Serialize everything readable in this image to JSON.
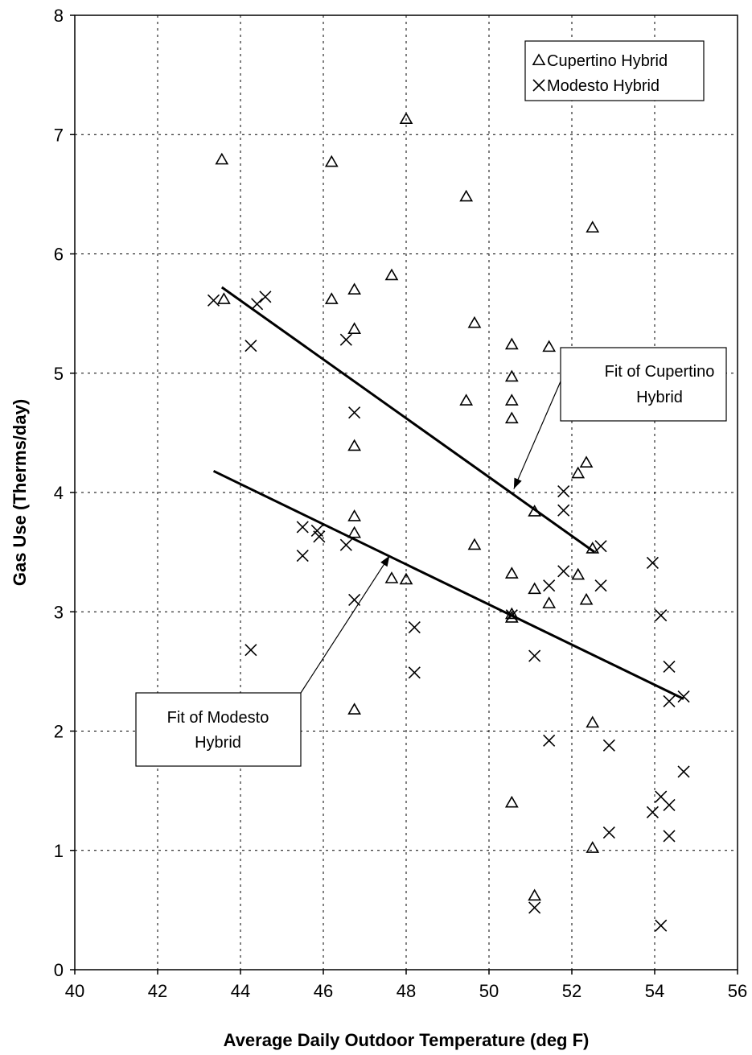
{
  "chart_data": {
    "type": "scatter",
    "title": "",
    "xlabel": "Average Daily Outdoor Temperature (deg F)",
    "ylabel": "Gas Use (Therms/day)",
    "xlim": [
      40,
      56
    ],
    "ylim": [
      0,
      8
    ],
    "xticks": [
      40,
      42,
      44,
      46,
      48,
      50,
      52,
      54,
      56
    ],
    "yticks": [
      0,
      1,
      2,
      3,
      4,
      5,
      6,
      7,
      8
    ],
    "grid": true,
    "legend_position": "top-right",
    "series": [
      {
        "name": "Cupertino Hybrid",
        "marker": "triangle",
        "points": [
          [
            43.55,
            6.79
          ],
          [
            43.6,
            5.62
          ],
          [
            46.2,
            6.77
          ],
          [
            46.2,
            5.62
          ],
          [
            46.75,
            5.7
          ],
          [
            46.75,
            5.37
          ],
          [
            46.75,
            4.39
          ],
          [
            46.75,
            3.8
          ],
          [
            46.75,
            3.66
          ],
          [
            46.75,
            2.18
          ],
          [
            47.65,
            5.82
          ],
          [
            47.65,
            3.28
          ],
          [
            48.0,
            7.13
          ],
          [
            48.0,
            3.27
          ],
          [
            49.45,
            6.48
          ],
          [
            49.45,
            4.77
          ],
          [
            49.65,
            5.42
          ],
          [
            49.65,
            3.56
          ],
          [
            50.55,
            5.24
          ],
          [
            50.55,
            4.97
          ],
          [
            50.55,
            4.77
          ],
          [
            50.55,
            4.62
          ],
          [
            50.55,
            3.32
          ],
          [
            50.55,
            2.98
          ],
          [
            50.55,
            2.95
          ],
          [
            50.55,
            1.4
          ],
          [
            51.1,
            3.84
          ],
          [
            51.1,
            3.19
          ],
          [
            51.1,
            0.62
          ],
          [
            51.45,
            5.22
          ],
          [
            51.45,
            3.07
          ],
          [
            52.15,
            4.16
          ],
          [
            52.15,
            3.31
          ],
          [
            52.35,
            4.25
          ],
          [
            52.35,
            3.1
          ],
          [
            52.5,
            6.22
          ],
          [
            52.5,
            3.53
          ],
          [
            52.5,
            2.07
          ],
          [
            52.5,
            1.02
          ]
        ]
      },
      {
        "name": "Modesto Hybrid",
        "marker": "x",
        "points": [
          [
            43.35,
            5.61
          ],
          [
            44.25,
            5.23
          ],
          [
            44.25,
            2.68
          ],
          [
            44.4,
            5.58
          ],
          [
            44.6,
            5.64
          ],
          [
            45.5,
            3.71
          ],
          [
            45.5,
            3.47
          ],
          [
            45.85,
            3.68
          ],
          [
            45.9,
            3.63
          ],
          [
            46.55,
            5.28
          ],
          [
            46.55,
            3.56
          ],
          [
            46.75,
            4.67
          ],
          [
            46.75,
            3.1
          ],
          [
            48.2,
            2.87
          ],
          [
            48.2,
            2.49
          ],
          [
            50.55,
            2.97
          ],
          [
            51.1,
            2.63
          ],
          [
            51.1,
            0.52
          ],
          [
            51.45,
            3.22
          ],
          [
            51.45,
            1.92
          ],
          [
            51.8,
            4.01
          ],
          [
            51.8,
            3.85
          ],
          [
            51.8,
            3.34
          ],
          [
            52.7,
            3.55
          ],
          [
            52.7,
            3.22
          ],
          [
            52.9,
            1.88
          ],
          [
            52.9,
            1.15
          ],
          [
            53.95,
            3.41
          ],
          [
            53.95,
            1.32
          ],
          [
            54.15,
            2.97
          ],
          [
            54.15,
            1.45
          ],
          [
            54.15,
            0.37
          ],
          [
            54.35,
            2.54
          ],
          [
            54.35,
            2.25
          ],
          [
            54.35,
            1.38
          ],
          [
            54.35,
            1.12
          ],
          [
            54.7,
            2.29
          ],
          [
            54.7,
            1.66
          ]
        ]
      }
    ],
    "fit_lines": [
      {
        "name": "Fit of Cupertino Hybrid",
        "from": [
          43.55,
          5.72
        ],
        "to": [
          52.55,
          3.5
        ]
      },
      {
        "name": "Fit of Modesto Hybrid",
        "from": [
          43.35,
          4.18
        ],
        "to": [
          54.7,
          2.27
        ]
      }
    ],
    "annotations": [
      {
        "lines": [
          "Fit of Cupertino",
          "Hybrid"
        ],
        "arrow_to": [
          50.6,
          4.03
        ]
      },
      {
        "lines": [
          "Fit of Modesto",
          "Hybrid"
        ],
        "arrow_to": [
          47.6,
          3.47
        ]
      }
    ]
  }
}
